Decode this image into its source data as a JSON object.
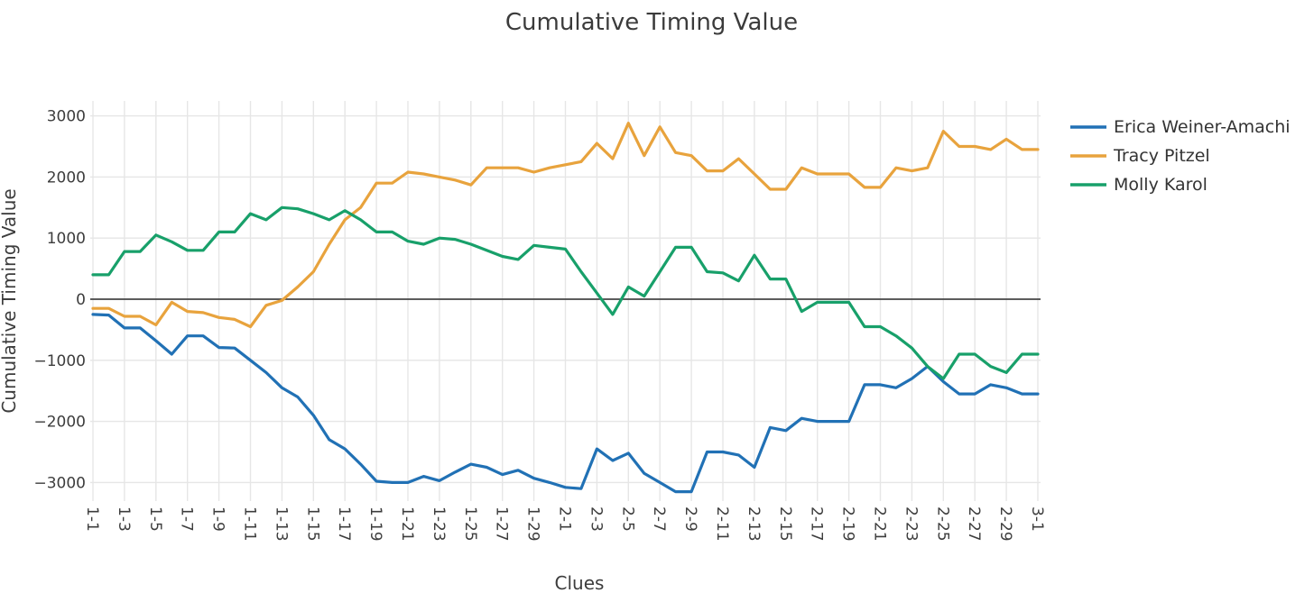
{
  "title": "Cumulative Timing Value",
  "axes": {
    "x_label": "Clues",
    "y_label": "Cumulative Timing Value",
    "y_tick_labels": [
      "3000",
      "2000",
      "1000",
      "0",
      "−1000",
      "−2000",
      "−3000"
    ],
    "x_tick_labels": [
      "1-1",
      "1-3",
      "1-5",
      "1-7",
      "1-9",
      "1-11",
      "1-13",
      "1-15",
      "1-17",
      "1-19",
      "1-21",
      "1-23",
      "1-25",
      "1-27",
      "1-29",
      "2-1",
      "2-3",
      "2-5",
      "2-7",
      "2-9",
      "2-11",
      "2-13",
      "2-15",
      "2-17",
      "2-19",
      "2-21",
      "2-23",
      "2-25",
      "2-27",
      "2-29",
      "3-1"
    ]
  },
  "colors": {
    "background": "#ffffff",
    "grid": "#e6e6e6",
    "zero_line": "#2b2b2b",
    "text": "#3d3d3d"
  },
  "chart_data": {
    "type": "line",
    "title": "Cumulative Timing Value",
    "xlabel": "Clues",
    "ylabel": "Cumulative Timing Value",
    "ylim": [
      -3000,
      3000
    ],
    "y_ticks": [
      3000,
      2000,
      1000,
      0,
      -1000,
      -2000,
      -3000
    ],
    "x_tick_labels": [
      "1-1",
      "1-3",
      "1-5",
      "1-7",
      "1-9",
      "1-11",
      "1-13",
      "1-15",
      "1-17",
      "1-19",
      "1-21",
      "1-23",
      "1-25",
      "1-27",
      "1-29",
      "2-1",
      "2-3",
      "2-5",
      "2-7",
      "2-9",
      "2-11",
      "2-13",
      "2-15",
      "2-17",
      "2-19",
      "2-21",
      "2-23",
      "2-25",
      "2-27",
      "2-29",
      "3-1"
    ],
    "points_per_tick": 2,
    "grid": true,
    "legend_position": "right",
    "series": [
      {
        "name": "Erica Weiner-Amachi",
        "color": "#2171b5",
        "values": [
          -250,
          -260,
          -470,
          -470,
          -680,
          -900,
          -600,
          -600,
          -790,
          -800,
          -1000,
          -1200,
          -1450,
          -1600,
          -1900,
          -2300,
          -2450,
          -2700,
          -2980,
          -3000,
          -3000,
          -2900,
          -2970,
          -2830,
          -2700,
          -2750,
          -2870,
          -2800,
          -2930,
          -3000,
          -3080,
          -3100,
          -2450,
          -2640,
          -2520,
          -2850,
          -3000,
          -3150,
          -3150,
          -2500,
          -2500,
          -2550,
          -2750,
          -2100,
          -2150,
          -1950,
          -2000,
          -2000,
          -2000,
          -1400,
          -1400,
          -1450,
          -1300,
          -1100,
          -1350,
          -1550,
          -1550,
          -1400,
          -1450,
          -1550,
          -1550
        ]
      },
      {
        "name": "Tracy Pitzel",
        "color": "#e8a33d",
        "values": [
          -150,
          -150,
          -280,
          -280,
          -420,
          -50,
          -200,
          -220,
          -300,
          -330,
          -450,
          -100,
          -20,
          200,
          450,
          900,
          1300,
          1500,
          1900,
          1900,
          2080,
          2050,
          2000,
          1950,
          1870,
          2150,
          2150,
          2150,
          2080,
          2150,
          2200,
          2250,
          2550,
          2300,
          2880,
          2350,
          2820,
          2400,
          2350,
          2100,
          2100,
          2300,
          2050,
          1800,
          1800,
          2150,
          2050,
          2050,
          2050,
          1830,
          1830,
          2150,
          2100,
          2150,
          2750,
          2500,
          2500,
          2450,
          2620,
          2450,
          2450
        ]
      },
      {
        "name": "Molly Karol",
        "color": "#18a06a",
        "values": [
          400,
          400,
          780,
          780,
          1050,
          940,
          800,
          800,
          1100,
          1100,
          1400,
          1300,
          1500,
          1480,
          1400,
          1300,
          1450,
          1300,
          1100,
          1100,
          950,
          900,
          1000,
          980,
          900,
          800,
          700,
          650,
          880,
          850,
          820,
          450,
          100,
          -250,
          200,
          50,
          450,
          850,
          850,
          450,
          430,
          300,
          720,
          330,
          330,
          -200,
          -50,
          -50,
          -50,
          -450,
          -450,
          -600,
          -800,
          -1100,
          -1300,
          -900,
          -900,
          -1100,
          -1200,
          -900,
          -900
        ]
      }
    ]
  }
}
